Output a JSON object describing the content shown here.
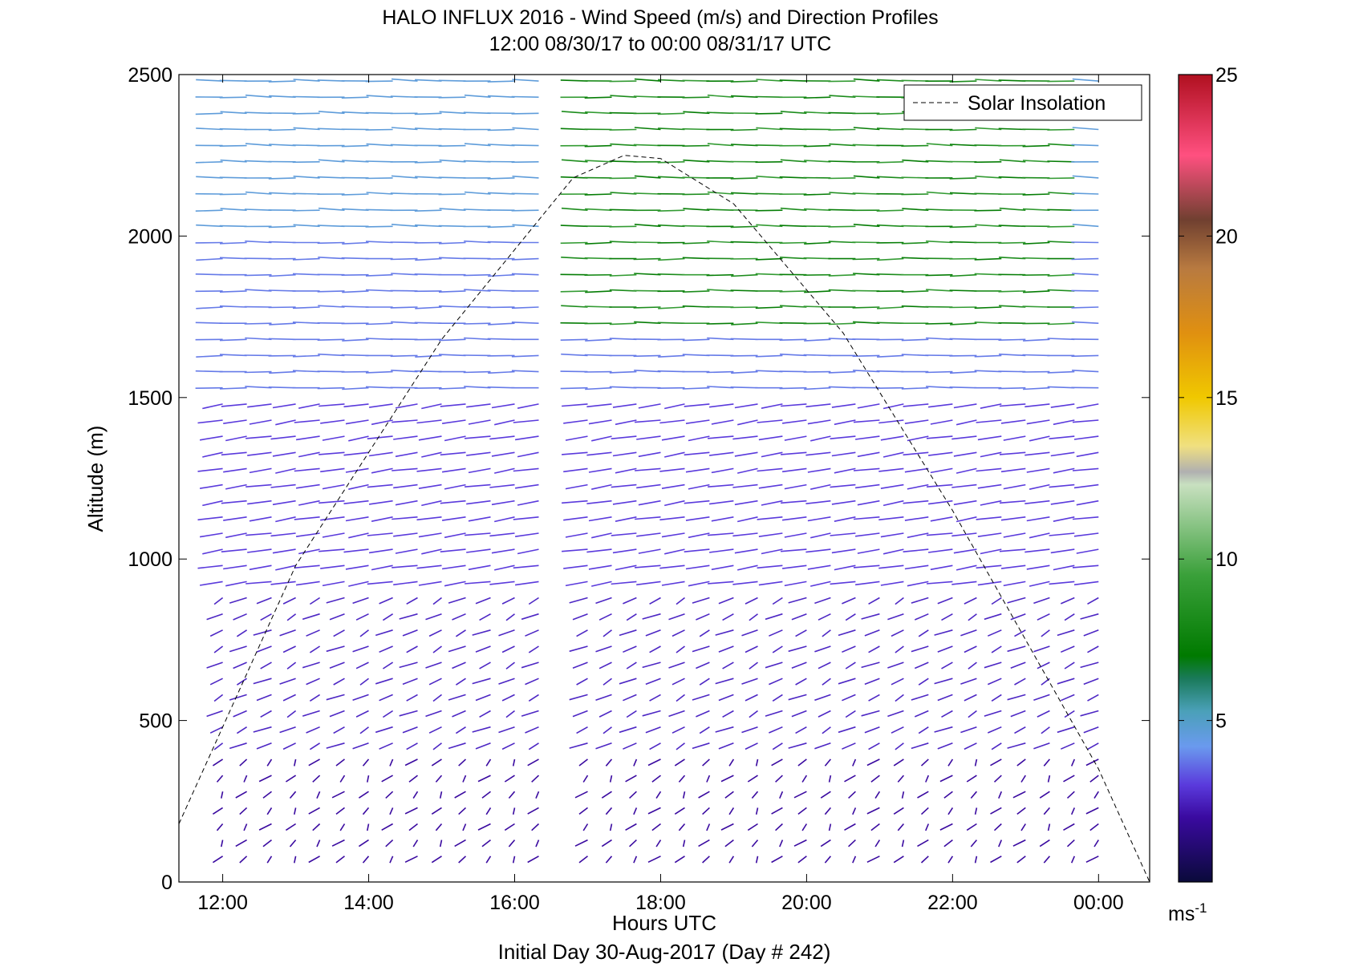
{
  "chart_data": {
    "type": "vector-field",
    "title": "HALO INFLUX 2016 - Wind Speed (m/s) and Direction Profiles",
    "subtitle": "12:00 08/30/17 to 00:00 08/31/17  UTC",
    "xlabel": "Hours UTC",
    "xsublabel": "Initial Day 30-Aug-2017 (Day # 242)",
    "ylabel": "Altitude (m)",
    "xlim": [
      11.4,
      24.7
    ],
    "ylim": [
      0,
      2500
    ],
    "xticks": [
      12,
      14,
      16,
      18,
      20,
      22,
      24
    ],
    "xtick_labels": [
      "12:00",
      "14:00",
      "16:00",
      "18:00",
      "20:00",
      "22:00",
      "00:00"
    ],
    "yticks": [
      0,
      500,
      1000,
      1500,
      2000,
      2500
    ],
    "ytick_labels": [
      "0",
      "500",
      "1000",
      "1500",
      "2000",
      "2500"
    ],
    "legend": {
      "label": "Solar Insolation",
      "placement": "top-right"
    },
    "colorbar": {
      "range": [
        0,
        25
      ],
      "ticks": [
        5,
        10,
        15,
        20,
        25
      ],
      "tick_labels": [
        "5",
        "10",
        "15",
        "20",
        "25"
      ],
      "unit_base": "ms",
      "unit_exp": "-1",
      "colors": [
        {
          "v": 0,
          "c": "#0a0a3a"
        },
        {
          "v": 2,
          "c": "#3a0aa0"
        },
        {
          "v": 3,
          "c": "#5a3adc"
        },
        {
          "v": 4.2,
          "c": "#6a9aee"
        },
        {
          "v": 5.3,
          "c": "#4aa0b8"
        },
        {
          "v": 6.3,
          "c": "#1a7a5a"
        },
        {
          "v": 7,
          "c": "#007a00"
        },
        {
          "v": 9.5,
          "c": "#3aa03a"
        },
        {
          "v": 12.3,
          "c": "#c8e0c0"
        },
        {
          "v": 12.7,
          "c": "#b0b0b0"
        },
        {
          "v": 13.5,
          "c": "#f0e080"
        },
        {
          "v": 15,
          "c": "#f0c800"
        },
        {
          "v": 17,
          "c": "#e09010"
        },
        {
          "v": 19,
          "c": "#b87a40"
        },
        {
          "v": 20.5,
          "c": "#704030"
        },
        {
          "v": 22.5,
          "c": "#ff5080"
        },
        {
          "v": 25,
          "c": "#b01020"
        }
      ]
    },
    "solar_insolation_curve": {
      "x": [
        11.4,
        13,
        15,
        16.8,
        17.5,
        18,
        19,
        20.5,
        22,
        24,
        24.7
      ],
      "y": [
        180,
        980,
        1680,
        2180,
        2250,
        2240,
        2100,
        1700,
        1150,
        350,
        0
      ]
    },
    "wind_field": {
      "times": [
        12.0,
        12.33,
        12.67,
        13.0,
        13.33,
        13.67,
        14.0,
        14.33,
        14.67,
        15.0,
        15.33,
        15.67,
        16.0,
        16.33,
        17.0,
        17.33,
        17.67,
        18.0,
        18.33,
        18.67,
        19.0,
        19.33,
        19.67,
        20.0,
        20.33,
        20.67,
        21.0,
        21.33,
        21.67,
        22.0,
        22.33,
        22.67,
        23.0,
        23.33,
        23.67,
        24.0
      ],
      "altitude_step": 50,
      "top_altitude": 2480,
      "arrow_length_px": 34,
      "layers": [
        {
          "z_max": 400,
          "dir_deg": 285,
          "speed": 2.0
        },
        {
          "z_max": 900,
          "dir_deg": 300,
          "speed": 2.6
        },
        {
          "z_max": 1500,
          "dir_deg": 330,
          "speed": 3.0
        },
        {
          "z_max": 2000,
          "dir_deg": 0,
          "speed": 3.8
        },
        {
          "z_max": 2500,
          "dir_deg": 5,
          "speed": 4.6
        }
      ],
      "green_region": {
        "t_min": 16.4,
        "t_max": 23.9,
        "z_min": 1700,
        "speed": 7.6
      }
    }
  }
}
